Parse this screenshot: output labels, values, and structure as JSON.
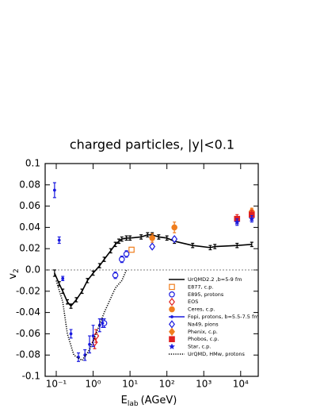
{
  "chart_data": {
    "type": "scatter",
    "title": "charged particles, |y|<0.1",
    "x_label": {
      "main": "E",
      "sub": "lab",
      "unit": "(AGeV)"
    },
    "y_label": {
      "main": "v",
      "sub": "2"
    },
    "x_log": true,
    "xlim": [
      0.05,
      30000
    ],
    "ylim": [
      -0.1,
      0.1
    ],
    "xticks": [
      {
        "value": 0.1,
        "label": "10⁻¹"
      },
      {
        "value": 1,
        "label": "10⁰"
      },
      {
        "value": 10,
        "label": "10¹"
      },
      {
        "value": 100,
        "label": "10²"
      },
      {
        "value": 1000,
        "label": "10³"
      },
      {
        "value": 10000,
        "label": "10⁴"
      }
    ],
    "yticks": [
      0.1,
      0.08,
      0.06,
      0.04,
      0.02,
      {
        "value": 0,
        "label": "0.0"
      },
      -0.02,
      -0.04,
      -0.06,
      -0.08,
      -0.1
    ],
    "zero_line": true,
    "series": [
      {
        "name": "UrQMD2.2 ,b=5-9 fm",
        "color": "#000000",
        "marker": "none",
        "line": "solid",
        "x": [
          0.09,
          0.12,
          0.15,
          0.2,
          0.25,
          0.35,
          0.5,
          0.7,
          1.0,
          1.5,
          2,
          3,
          4,
          5,
          6,
          8,
          10,
          20,
          30,
          40,
          60,
          100,
          160,
          500,
          1500,
          2000,
          8000,
          20000
        ],
        "values": [
          -0.003,
          -0.013,
          -0.02,
          -0.03,
          -0.034,
          -0.028,
          -0.02,
          -0.01,
          -0.003,
          0.004,
          0.01,
          0.018,
          0.024,
          0.027,
          0.029,
          0.03,
          0.03,
          0.031,
          0.033,
          0.033,
          0.031,
          0.03,
          0.027,
          0.023,
          0.021,
          0.022,
          0.023,
          0.024
        ],
        "errors": [
          0.003,
          0.002,
          0.002,
          0.002,
          0.002,
          0.002,
          0.002,
          0.002,
          0.002,
          0.002,
          0.002,
          0.002,
          0.002,
          0.002,
          0.002,
          0.002,
          0.002,
          0.002,
          0.002,
          0.002,
          0.002,
          0.002,
          0.002,
          0.002,
          0.002,
          0.002,
          0.002,
          0.002
        ]
      },
      {
        "name": "E877, c.p.",
        "color": "#f07e1e",
        "marker": "square-open",
        "line": "none",
        "x": [
          11
        ],
        "values": [
          0.019
        ]
      },
      {
        "name": "E895, protons",
        "color": "#1a1adf",
        "marker": "circle-open",
        "line": "none",
        "x": [
          2,
          4,
          6,
          8
        ],
        "values": [
          -0.05,
          -0.005,
          0.01,
          0.015
        ],
        "errors": [
          0.004,
          0.003,
          0.003,
          0.003
        ]
      },
      {
        "name": "EOS",
        "color": "#e02020",
        "marker": "diamond-open",
        "line": "none",
        "x": [
          1.1,
          1.2
        ],
        "values": [
          -0.068,
          -0.062
        ],
        "errors": [
          0.006,
          0.006
        ]
      },
      {
        "name": "Ceres, c.p.",
        "color": "#f07e1e",
        "marker": "circle-filled",
        "line": "none",
        "x": [
          40,
          160
        ],
        "values": [
          0.03,
          0.04
        ],
        "errors": [
          0.004,
          0.005
        ]
      },
      {
        "name": "Fopi, protons, b=5.5-7.5 fm",
        "color": "#1a1adf",
        "marker": "dot",
        "line": "none",
        "x": [
          0.09,
          0.12,
          0.15,
          0.25,
          0.4,
          0.6,
          0.8,
          1.0,
          1.5,
          1.8
        ],
        "values": [
          0.075,
          0.028,
          -0.008,
          -0.06,
          -0.082,
          -0.08,
          -0.07,
          -0.062,
          -0.052,
          -0.05
        ],
        "errors": [
          0.007,
          0.003,
          0.002,
          0.004,
          0.004,
          0.005,
          0.008,
          0.01,
          0.006,
          0.004
        ]
      },
      {
        "name": "Na49, pions",
        "color": "#1a1adf",
        "marker": "diamond-open",
        "line": "none",
        "x": [
          40,
          160
        ],
        "values": [
          0.022,
          0.029
        ],
        "errors": [
          0.002,
          0.002
        ]
      },
      {
        "name": "Phenix, c.p.",
        "color": "#f07e1e",
        "marker": "diamond-filled",
        "line": "none",
        "x": [
          20000
        ],
        "values": [
          0.055
        ],
        "errors": [
          0.003
        ]
      },
      {
        "name": "Phobos, c.p.",
        "color": "#e02020",
        "marker": "square-filled",
        "line": "none",
        "x": [
          8000,
          20000
        ],
        "values": [
          0.048,
          0.052
        ],
        "errors": [
          0.004,
          0.004
        ]
      },
      {
        "name": "Star, c.p.",
        "color": "#1a1adf",
        "marker": "star",
        "line": "none",
        "x": [
          8000,
          20000
        ],
        "values": [
          0.045,
          0.048
        ],
        "errors": [
          0.003,
          0.003
        ]
      },
      {
        "name": "UrQMD, HMw, protons",
        "color": "#000000",
        "marker": "none",
        "line": "dotted",
        "x": [
          0.1,
          0.15,
          0.2,
          0.3,
          0.5,
          0.8,
          1.2,
          2,
          4,
          6,
          8
        ],
        "values": [
          -0.01,
          -0.03,
          -0.06,
          -0.08,
          -0.085,
          -0.075,
          -0.06,
          -0.04,
          -0.017,
          -0.01,
          0.0
        ]
      }
    ]
  }
}
